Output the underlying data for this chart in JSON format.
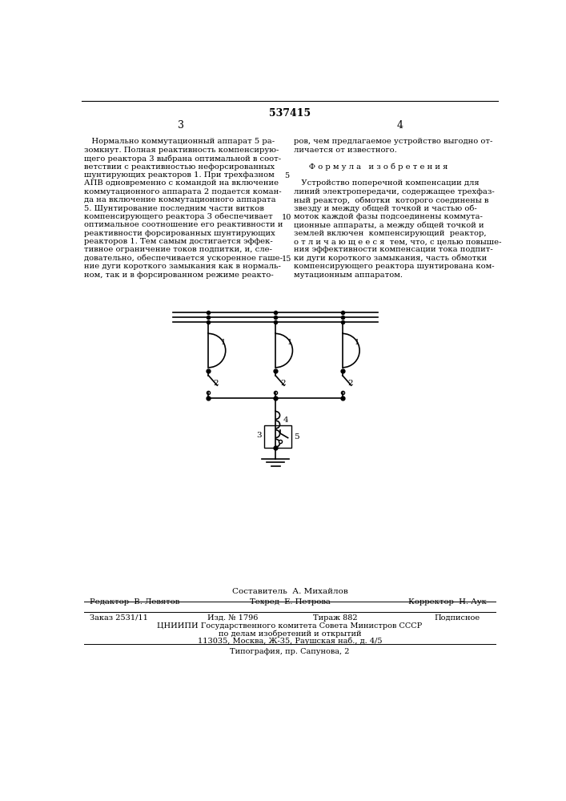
{
  "title": "537415",
  "page_numbers": [
    "3",
    "4"
  ],
  "left_col_lines": [
    "   Нормально коммутационный аппарат 5 ра-",
    "зомкнут. Полная реактивность компенсирую-",
    "щего реактора 3 выбрана оптимальной в соот-",
    "ветствии с реактивностью нефорсированных",
    "шунтирующих реакторов 1. При трехфазном",
    "АПВ одновременно с командой на включение",
    "коммутационного аппарата 2 подается коман-",
    "да на включение коммутационного аппарата",
    "5. Шунтирование последним части витков",
    "компенсирующего реактора 3 обеспечивает",
    "оптимальное соотношение его реактивности и",
    "реактивности форсированных шунтирующих",
    "реакторов 1. Тем самым достигается эффек-",
    "тивное ограничение токов подпитки, и, сле-",
    "довательно, обеспечивается ускоренное гаше-",
    "ние дуги короткого замыкания как в нормаль-",
    "ном, так и в форсированном режиме реакто-"
  ],
  "right_col_lines": [
    "ров, чем предлагаемое устройство выгодно от-",
    "личается от известного.",
    "",
    "      Ф о р м у л а   и з о б р е т е н и я",
    "",
    "   Устройство поперечной компенсации для",
    "линий электропередачи, содержащее трехфаз-",
    "ный реактор,  обмотки  которого соединены в",
    "звезду и между общей точкой и частью об-",
    "моток каждой фазы подсоединены коммута-",
    "ционные аппараты, а между общей точкой и",
    "землей включен  компенсирующий  реактор,",
    "о т л и ч а ю щ е е с я  тем, что, с целью повыше-",
    "ния эффективности компенсации тока подпит-",
    "ки дуги короткого замыкания, часть обмотки",
    "компенсирующего реактора шунтирована ком-",
    "мутационным аппаратом."
  ],
  "line_numbers": [
    "5",
    "10",
    "15"
  ],
  "line_number_rows": [
    5,
    10,
    15
  ],
  "composer_line": "Составитель  А. Михайлов",
  "editor_line": "Редактор  В. Левятов",
  "techred_line": "Техред  Е. Петрова",
  "corrector_line": "Корректор  Н. Аук",
  "order_line": "Заказ 2531/11",
  "edition_line": "Изд. № 1796",
  "tirazh_line": "Тираж 882",
  "podpisnoe_line": "Подписное",
  "cnipi_line": "ЦНИИПИ Государственного комитета Совета Министров СССР",
  "cnipi_line2": "по делам изобретений и открытий",
  "cnipi_line3": "113035, Москва, Ж-35, Раушская наб., д. 4/5",
  "typography_line": "Типография, пр. Сапунова, 2",
  "bg_color": "#ffffff",
  "text_color": "#000000"
}
